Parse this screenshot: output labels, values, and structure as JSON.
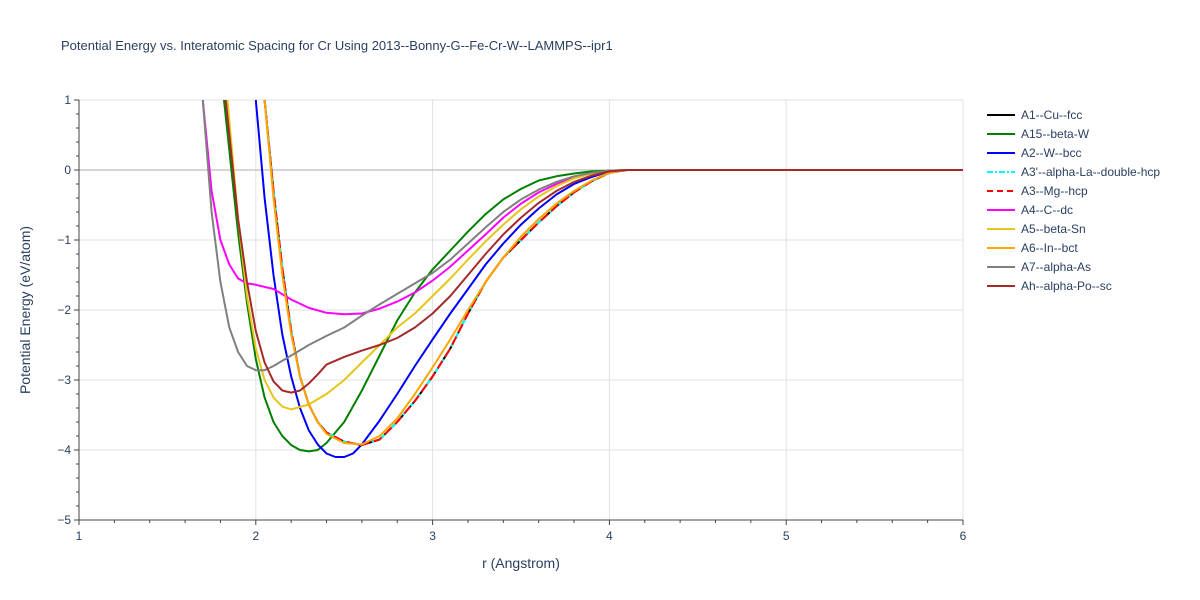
{
  "chart_data": {
    "type": "line",
    "title": "Potential Energy vs. Interatomic Spacing for Cr Using 2013--Bonny-G--Fe-Cr-W--LAMMPS--ipr1",
    "xlabel": "r (Angstrom)",
    "ylabel": "Potential Energy (eV/atom)",
    "xlim": [
      1,
      6
    ],
    "ylim": [
      -5,
      1
    ],
    "xticks": [
      1,
      2,
      3,
      4,
      5,
      6
    ],
    "yticks": [
      1,
      0,
      -1,
      -2,
      -3,
      -4,
      -5
    ],
    "xtick_labels": [
      "1",
      "2",
      "3",
      "4",
      "5",
      "6"
    ],
    "ytick_labels": [
      "1",
      "0",
      "−1",
      "−2",
      "−3",
      "−4",
      "−5"
    ],
    "grid": true,
    "legend_position": "right",
    "series": [
      {
        "name": "A1--Cu--fcc",
        "color": "#000000",
        "dash": "solid",
        "points": [
          [
            2.05,
            1.0
          ],
          [
            2.1,
            -0.3
          ],
          [
            2.15,
            -1.4
          ],
          [
            2.2,
            -2.3
          ],
          [
            2.25,
            -2.95
          ],
          [
            2.3,
            -3.35
          ],
          [
            2.35,
            -3.6
          ],
          [
            2.4,
            -3.75
          ],
          [
            2.5,
            -3.88
          ],
          [
            2.6,
            -3.93
          ],
          [
            2.7,
            -3.85
          ],
          [
            2.8,
            -3.6
          ],
          [
            2.9,
            -3.3
          ],
          [
            3.0,
            -2.95
          ],
          [
            3.1,
            -2.55
          ],
          [
            3.2,
            -2.05
          ],
          [
            3.3,
            -1.6
          ],
          [
            3.4,
            -1.25
          ],
          [
            3.5,
            -1.0
          ],
          [
            3.6,
            -0.75
          ],
          [
            3.7,
            -0.52
          ],
          [
            3.8,
            -0.32
          ],
          [
            3.9,
            -0.16
          ],
          [
            4.0,
            -0.04
          ],
          [
            4.1,
            0.0
          ],
          [
            6.0,
            0.0
          ]
        ]
      },
      {
        "name": "A15--beta-W",
        "color": "#008000",
        "dash": "solid",
        "points": [
          [
            1.82,
            1.0
          ],
          [
            1.9,
            -0.9
          ],
          [
            1.95,
            -1.9
          ],
          [
            2.0,
            -2.7
          ],
          [
            2.05,
            -3.25
          ],
          [
            2.1,
            -3.6
          ],
          [
            2.15,
            -3.8
          ],
          [
            2.2,
            -3.93
          ],
          [
            2.25,
            -4.0
          ],
          [
            2.3,
            -4.02
          ],
          [
            2.35,
            -4.0
          ],
          [
            2.4,
            -3.9
          ],
          [
            2.5,
            -3.6
          ],
          [
            2.6,
            -3.15
          ],
          [
            2.7,
            -2.65
          ],
          [
            2.8,
            -2.15
          ],
          [
            2.9,
            -1.75
          ],
          [
            3.0,
            -1.42
          ],
          [
            3.1,
            -1.15
          ],
          [
            3.2,
            -0.88
          ],
          [
            3.3,
            -0.63
          ],
          [
            3.4,
            -0.42
          ],
          [
            3.5,
            -0.27
          ],
          [
            3.6,
            -0.15
          ],
          [
            3.7,
            -0.09
          ],
          [
            3.8,
            -0.05
          ],
          [
            3.9,
            -0.02
          ],
          [
            4.0,
            -0.01
          ],
          [
            4.1,
            0.0
          ],
          [
            6.0,
            0.0
          ]
        ]
      },
      {
        "name": "A2--W--bcc",
        "color": "#0000ff",
        "dash": "solid",
        "points": [
          [
            2.0,
            1.0
          ],
          [
            2.05,
            -0.4
          ],
          [
            2.1,
            -1.5
          ],
          [
            2.15,
            -2.35
          ],
          [
            2.2,
            -2.95
          ],
          [
            2.25,
            -3.4
          ],
          [
            2.3,
            -3.72
          ],
          [
            2.35,
            -3.92
          ],
          [
            2.4,
            -4.05
          ],
          [
            2.45,
            -4.1
          ],
          [
            2.5,
            -4.1
          ],
          [
            2.55,
            -4.05
          ],
          [
            2.6,
            -3.92
          ],
          [
            2.7,
            -3.58
          ],
          [
            2.8,
            -3.2
          ],
          [
            2.9,
            -2.8
          ],
          [
            3.0,
            -2.42
          ],
          [
            3.1,
            -2.05
          ],
          [
            3.2,
            -1.7
          ],
          [
            3.3,
            -1.35
          ],
          [
            3.4,
            -1.05
          ],
          [
            3.5,
            -0.78
          ],
          [
            3.6,
            -0.55
          ],
          [
            3.7,
            -0.35
          ],
          [
            3.8,
            -0.2
          ],
          [
            3.9,
            -0.1
          ],
          [
            4.0,
            -0.02
          ],
          [
            4.1,
            0.0
          ],
          [
            6.0,
            0.0
          ]
        ]
      },
      {
        "name": "A3'--alpha-La--double-hcp",
        "color": "#00ffff",
        "dash": "dashdot",
        "points": [
          [
            2.05,
            1.0
          ],
          [
            2.1,
            -0.3
          ],
          [
            2.15,
            -1.4
          ],
          [
            2.2,
            -2.3
          ],
          [
            2.25,
            -2.95
          ],
          [
            2.3,
            -3.35
          ],
          [
            2.35,
            -3.6
          ],
          [
            2.4,
            -3.75
          ],
          [
            2.5,
            -3.88
          ],
          [
            2.6,
            -3.93
          ],
          [
            2.7,
            -3.85
          ],
          [
            2.8,
            -3.6
          ],
          [
            2.9,
            -3.3
          ],
          [
            3.0,
            -2.95
          ],
          [
            3.1,
            -2.55
          ],
          [
            3.2,
            -2.05
          ],
          [
            3.3,
            -1.6
          ],
          [
            3.4,
            -1.25
          ],
          [
            3.5,
            -1.0
          ],
          [
            3.6,
            -0.75
          ],
          [
            3.7,
            -0.52
          ],
          [
            3.8,
            -0.32
          ],
          [
            3.9,
            -0.16
          ],
          [
            4.0,
            -0.04
          ],
          [
            4.1,
            0.0
          ],
          [
            6.0,
            0.0
          ]
        ]
      },
      {
        "name": "A3--Mg--hcp",
        "color": "#ff0000",
        "dash": "dash",
        "points": [
          [
            2.05,
            1.0
          ],
          [
            2.1,
            -0.3
          ],
          [
            2.15,
            -1.4
          ],
          [
            2.2,
            -2.3
          ],
          [
            2.25,
            -2.95
          ],
          [
            2.3,
            -3.35
          ],
          [
            2.35,
            -3.6
          ],
          [
            2.4,
            -3.75
          ],
          [
            2.5,
            -3.88
          ],
          [
            2.6,
            -3.93
          ],
          [
            2.7,
            -3.85
          ],
          [
            2.8,
            -3.6
          ],
          [
            2.9,
            -3.3
          ],
          [
            3.0,
            -2.95
          ],
          [
            3.1,
            -2.55
          ],
          [
            3.2,
            -2.05
          ],
          [
            3.3,
            -1.6
          ],
          [
            3.4,
            -1.25
          ],
          [
            3.5,
            -1.0
          ],
          [
            3.6,
            -0.75
          ],
          [
            3.7,
            -0.52
          ],
          [
            3.8,
            -0.32
          ],
          [
            3.9,
            -0.16
          ],
          [
            4.0,
            -0.04
          ],
          [
            4.1,
            0.0
          ],
          [
            6.0,
            0.0
          ]
        ]
      },
      {
        "name": "A4--C--dc",
        "color": "#ff00ff",
        "dash": "solid",
        "points": [
          [
            1.7,
            1.0
          ],
          [
            1.75,
            -0.3
          ],
          [
            1.8,
            -1.0
          ],
          [
            1.85,
            -1.35
          ],
          [
            1.9,
            -1.55
          ],
          [
            1.95,
            -1.62
          ],
          [
            2.0,
            -1.64
          ],
          [
            2.1,
            -1.7
          ],
          [
            2.2,
            -1.85
          ],
          [
            2.3,
            -1.97
          ],
          [
            2.4,
            -2.04
          ],
          [
            2.5,
            -2.06
          ],
          [
            2.6,
            -2.05
          ],
          [
            2.7,
            -1.98
          ],
          [
            2.8,
            -1.88
          ],
          [
            2.9,
            -1.75
          ],
          [
            3.0,
            -1.58
          ],
          [
            3.1,
            -1.38
          ],
          [
            3.2,
            -1.15
          ],
          [
            3.3,
            -0.92
          ],
          [
            3.4,
            -0.68
          ],
          [
            3.5,
            -0.48
          ],
          [
            3.6,
            -0.32
          ],
          [
            3.7,
            -0.2
          ],
          [
            3.8,
            -0.11
          ],
          [
            3.9,
            -0.05
          ],
          [
            4.0,
            -0.01
          ],
          [
            4.1,
            0.0
          ],
          [
            6.0,
            0.0
          ]
        ]
      },
      {
        "name": "A5--beta-Sn",
        "color": "#e6c619",
        "dash": "solid",
        "points": [
          [
            1.84,
            1.0
          ],
          [
            1.9,
            -0.7
          ],
          [
            1.95,
            -1.8
          ],
          [
            2.0,
            -2.55
          ],
          [
            2.05,
            -3.0
          ],
          [
            2.1,
            -3.25
          ],
          [
            2.15,
            -3.38
          ],
          [
            2.2,
            -3.42
          ],
          [
            2.3,
            -3.35
          ],
          [
            2.4,
            -3.2
          ],
          [
            2.5,
            -3.0
          ],
          [
            2.6,
            -2.75
          ],
          [
            2.7,
            -2.5
          ],
          [
            2.8,
            -2.25
          ],
          [
            2.9,
            -2.05
          ],
          [
            3.0,
            -1.8
          ],
          [
            3.1,
            -1.55
          ],
          [
            3.2,
            -1.28
          ],
          [
            3.3,
            -1.02
          ],
          [
            3.4,
            -0.78
          ],
          [
            3.5,
            -0.56
          ],
          [
            3.6,
            -0.38
          ],
          [
            3.7,
            -0.23
          ],
          [
            3.8,
            -0.12
          ],
          [
            3.9,
            -0.05
          ],
          [
            4.0,
            -0.01
          ],
          [
            4.1,
            0.0
          ],
          [
            6.0,
            0.0
          ]
        ]
      },
      {
        "name": "A6--In--bct",
        "color": "#ffa500",
        "dash": "solid",
        "points": [
          [
            2.05,
            1.0
          ],
          [
            2.1,
            -0.4
          ],
          [
            2.15,
            -1.5
          ],
          [
            2.2,
            -2.35
          ],
          [
            2.25,
            -2.95
          ],
          [
            2.3,
            -3.35
          ],
          [
            2.35,
            -3.6
          ],
          [
            2.4,
            -3.77
          ],
          [
            2.5,
            -3.9
          ],
          [
            2.6,
            -3.92
          ],
          [
            2.7,
            -3.8
          ],
          [
            2.8,
            -3.55
          ],
          [
            2.9,
            -3.2
          ],
          [
            3.0,
            -2.82
          ],
          [
            3.1,
            -2.42
          ],
          [
            3.2,
            -2.0
          ],
          [
            3.3,
            -1.6
          ],
          [
            3.4,
            -1.25
          ],
          [
            3.5,
            -0.95
          ],
          [
            3.6,
            -0.7
          ],
          [
            3.7,
            -0.48
          ],
          [
            3.8,
            -0.3
          ],
          [
            3.9,
            -0.15
          ],
          [
            4.0,
            -0.04
          ],
          [
            4.1,
            0.0
          ],
          [
            6.0,
            0.0
          ]
        ]
      },
      {
        "name": "A7--alpha-As",
        "color": "#808080",
        "dash": "solid",
        "points": [
          [
            1.7,
            1.0
          ],
          [
            1.75,
            -0.6
          ],
          [
            1.8,
            -1.6
          ],
          [
            1.85,
            -2.25
          ],
          [
            1.9,
            -2.6
          ],
          [
            1.95,
            -2.8
          ],
          [
            2.0,
            -2.86
          ],
          [
            2.05,
            -2.86
          ],
          [
            2.1,
            -2.8
          ],
          [
            2.2,
            -2.65
          ],
          [
            2.3,
            -2.5
          ],
          [
            2.4,
            -2.37
          ],
          [
            2.5,
            -2.25
          ],
          [
            2.6,
            -2.08
          ],
          [
            2.7,
            -1.92
          ],
          [
            2.8,
            -1.77
          ],
          [
            2.9,
            -1.62
          ],
          [
            3.0,
            -1.47
          ],
          [
            3.1,
            -1.28
          ],
          [
            3.2,
            -1.05
          ],
          [
            3.3,
            -0.82
          ],
          [
            3.4,
            -0.6
          ],
          [
            3.5,
            -0.42
          ],
          [
            3.6,
            -0.28
          ],
          [
            3.7,
            -0.17
          ],
          [
            3.8,
            -0.09
          ],
          [
            3.9,
            -0.04
          ],
          [
            4.0,
            -0.01
          ],
          [
            4.1,
            0.0
          ],
          [
            6.0,
            0.0
          ]
        ]
      },
      {
        "name": "Ah--alpha-Po--sc",
        "color": "#a52a2a",
        "dash": "solid",
        "points": [
          [
            1.83,
            1.0
          ],
          [
            1.9,
            -0.7
          ],
          [
            1.95,
            -1.6
          ],
          [
            2.0,
            -2.3
          ],
          [
            2.05,
            -2.75
          ],
          [
            2.1,
            -3.02
          ],
          [
            2.15,
            -3.15
          ],
          [
            2.2,
            -3.18
          ],
          [
            2.25,
            -3.15
          ],
          [
            2.3,
            -3.05
          ],
          [
            2.35,
            -2.92
          ],
          [
            2.4,
            -2.78
          ],
          [
            2.5,
            -2.67
          ],
          [
            2.6,
            -2.58
          ],
          [
            2.7,
            -2.5
          ],
          [
            2.8,
            -2.4
          ],
          [
            2.9,
            -2.25
          ],
          [
            3.0,
            -2.05
          ],
          [
            3.1,
            -1.8
          ],
          [
            3.2,
            -1.5
          ],
          [
            3.3,
            -1.2
          ],
          [
            3.4,
            -0.92
          ],
          [
            3.5,
            -0.68
          ],
          [
            3.6,
            -0.47
          ],
          [
            3.7,
            -0.3
          ],
          [
            3.8,
            -0.17
          ],
          [
            3.9,
            -0.08
          ],
          [
            4.0,
            -0.02
          ],
          [
            4.1,
            0.0
          ],
          [
            6.0,
            0.0
          ]
        ]
      }
    ]
  }
}
